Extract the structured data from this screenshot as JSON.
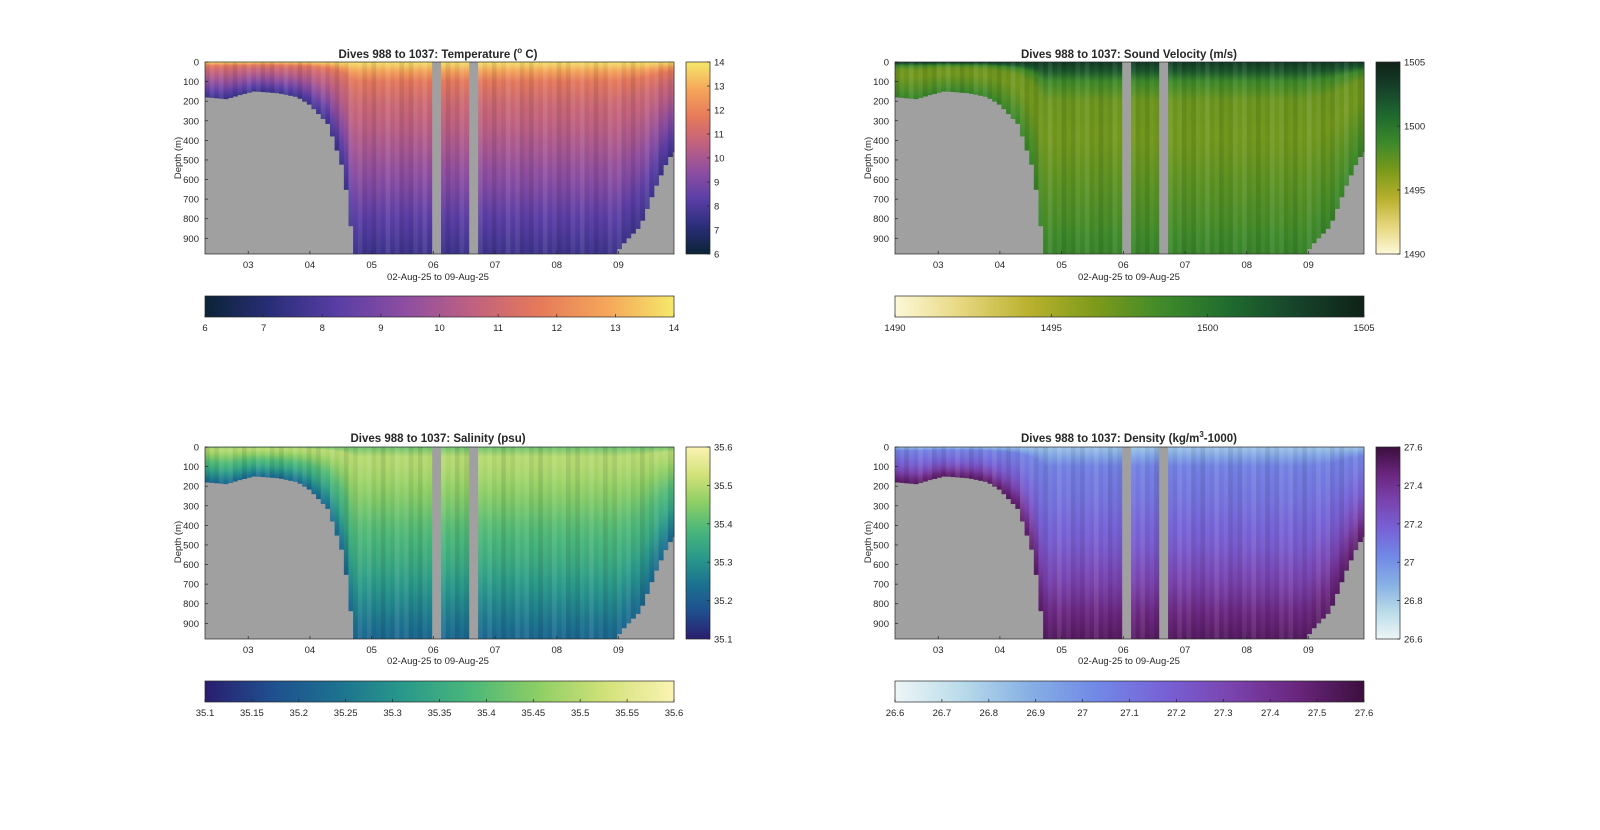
{
  "figure": {
    "background": "#ffffff",
    "mask_color": "#a0a0a0"
  },
  "chart_data": [
    {
      "type": "heatmap",
      "variable": "temperature",
      "title_parts": [
        "Dives 988 to 1037: Temperature (",
        "o",
        " C)"
      ],
      "xlabel": "02-Aug-25 to 09-Aug-25",
      "ylabel": "Depth (m)",
      "x_ticks": [
        "03",
        "04",
        "05",
        "06",
        "07",
        "08",
        "09"
      ],
      "y_ticks": [
        "0",
        "100",
        "200",
        "300",
        "400",
        "500",
        "600",
        "700",
        "800",
        "900"
      ],
      "ylim": [
        0,
        980
      ],
      "colorbar_ticks": [
        "6",
        "7",
        "8",
        "9",
        "10",
        "11",
        "12",
        "13",
        "14"
      ],
      "colorbar_h_ticks": [
        "6",
        "7",
        "8",
        "9",
        "10",
        "11",
        "12",
        "13",
        "14"
      ],
      "clim": [
        6,
        14
      ],
      "colormap": [
        "#0b2336",
        "#2a2e7a",
        "#5a3ea6",
        "#8e4ea1",
        "#c06180",
        "#e67a5a",
        "#f5a65a",
        "#f5e86a"
      ],
      "profile": [
        {
          "depth": 0,
          "value": 13.9
        },
        {
          "depth": 40,
          "value": 13.0
        },
        {
          "depth": 80,
          "value": 11.8
        },
        {
          "depth": 200,
          "value": 11.0
        },
        {
          "depth": 400,
          "value": 10.2
        },
        {
          "depth": 600,
          "value": 9.3
        },
        {
          "depth": 800,
          "value": 8.3
        },
        {
          "depth": 980,
          "value": 7.6
        }
      ]
    },
    {
      "type": "heatmap",
      "variable": "sound_velocity",
      "title_parts": [
        "Dives 988 to 1037: Sound Velocity (m/s)"
      ],
      "xlabel": "02-Aug-25 to 09-Aug-25",
      "ylabel": "Depth (m)",
      "x_ticks": [
        "03",
        "04",
        "05",
        "06",
        "07",
        "08",
        "09"
      ],
      "y_ticks": [
        "0",
        "100",
        "200",
        "300",
        "400",
        "500",
        "600",
        "700",
        "800",
        "900"
      ],
      "ylim": [
        0,
        980
      ],
      "colorbar_ticks": [
        "1490",
        "1495",
        "1500",
        "1505"
      ],
      "colorbar_h_ticks": [
        "1490",
        "1495",
        "1500",
        "1505"
      ],
      "clim": [
        1490,
        1505
      ],
      "colormap": [
        "#fdf8d8",
        "#e6d77e",
        "#b9b12e",
        "#7d9a1a",
        "#3f8a2a",
        "#1f6b2e",
        "#16432a",
        "#0f2216"
      ],
      "profile": [
        {
          "depth": 0,
          "value": 1503.5
        },
        {
          "depth": 40,
          "value": 1502.5
        },
        {
          "depth": 80,
          "value": 1499.0
        },
        {
          "depth": 200,
          "value": 1497.0
        },
        {
          "depth": 400,
          "value": 1496.8
        },
        {
          "depth": 600,
          "value": 1497.5
        },
        {
          "depth": 800,
          "value": 1498.2
        },
        {
          "depth": 980,
          "value": 1499.0
        }
      ]
    },
    {
      "type": "heatmap",
      "variable": "salinity",
      "title_parts": [
        "Dives 988 to 1037: Salinity (psu)"
      ],
      "xlabel": "02-Aug-25 to 09-Aug-25",
      "ylabel": "Depth (m)",
      "x_ticks": [
        "03",
        "04",
        "05",
        "06",
        "07",
        "08",
        "09"
      ],
      "y_ticks": [
        "0",
        "100",
        "200",
        "300",
        "400",
        "500",
        "600",
        "700",
        "800",
        "900"
      ],
      "ylim": [
        0,
        980
      ],
      "colorbar_ticks": [
        "35.1",
        "35.2",
        "35.3",
        "35.4",
        "35.5",
        "35.6"
      ],
      "colorbar_h_ticks": [
        "35.1",
        "35.15",
        "35.2",
        "35.25",
        "35.3",
        "35.35",
        "35.4",
        "35.45",
        "35.5",
        "35.55",
        "35.6"
      ],
      "clim": [
        35.1,
        35.6
      ],
      "colormap": [
        "#2a1d6e",
        "#1f4f8f",
        "#1c7290",
        "#2a9a8a",
        "#4cb879",
        "#8fcf65",
        "#d3e27a",
        "#fbf3b3"
      ],
      "profile": [
        {
          "depth": 0,
          "value": 35.42
        },
        {
          "depth": 40,
          "value": 35.5
        },
        {
          "depth": 120,
          "value": 35.49
        },
        {
          "depth": 250,
          "value": 35.45
        },
        {
          "depth": 400,
          "value": 35.4
        },
        {
          "depth": 600,
          "value": 35.35
        },
        {
          "depth": 800,
          "value": 35.28
        },
        {
          "depth": 980,
          "value": 35.22
        }
      ]
    },
    {
      "type": "heatmap",
      "variable": "density",
      "title_parts": [
        "Dives 988 to 1037: Density (kg/m",
        "3",
        "-1000)"
      ],
      "xlabel": "02-Aug-25 to 09-Aug-25",
      "ylabel": "Depth (m)",
      "x_ticks": [
        "03",
        "04",
        "05",
        "06",
        "07",
        "08",
        "09"
      ],
      "y_ticks": [
        "0",
        "100",
        "200",
        "300",
        "400",
        "500",
        "600",
        "700",
        "800",
        "900"
      ],
      "ylim": [
        0,
        980
      ],
      "colorbar_ticks": [
        "26.6",
        "26.8",
        "27",
        "27.2",
        "27.4",
        "27.6"
      ],
      "colorbar_h_ticks": [
        "26.6",
        "26.7",
        "26.8",
        "26.9",
        "27",
        "27.1",
        "27.2",
        "27.3",
        "27.4",
        "27.5",
        "27.6"
      ],
      "clim": [
        26.6,
        27.6
      ],
      "colormap": [
        "#eef6f7",
        "#b9dbe9",
        "#87b0e4",
        "#7189e6",
        "#7762d6",
        "#7a44b0",
        "#6a267e",
        "#3c0f3e"
      ],
      "profile": [
        {
          "depth": 0,
          "value": 26.82
        },
        {
          "depth": 40,
          "value": 26.9
        },
        {
          "depth": 80,
          "value": 27.05
        },
        {
          "depth": 300,
          "value": 27.12
        },
        {
          "depth": 500,
          "value": 27.2
        },
        {
          "depth": 700,
          "value": 27.33
        },
        {
          "depth": 850,
          "value": 27.45
        },
        {
          "depth": 980,
          "value": 27.52
        }
      ]
    }
  ],
  "section": {
    "x_range_days": [
      2.3,
      9.9
    ],
    "x_tick_days": [
      3,
      4,
      5,
      6,
      7,
      8,
      9
    ],
    "column_width_days": 0.075,
    "data_gaps_days": [
      [
        5.97,
        6.12
      ],
      [
        6.57,
        6.72
      ]
    ],
    "bottom_depth_m": [
      {
        "day": 2.3,
        "depth": 180
      },
      {
        "day": 2.65,
        "depth": 190
      },
      {
        "day": 2.85,
        "depth": 170
      },
      {
        "day": 3.1,
        "depth": 150
      },
      {
        "day": 3.5,
        "depth": 160
      },
      {
        "day": 3.8,
        "depth": 180
      },
      {
        "day": 4.0,
        "depth": 220
      },
      {
        "day": 4.3,
        "depth": 320
      },
      {
        "day": 4.55,
        "depth": 560
      },
      {
        "day": 4.72,
        "depth": 980
      },
      {
        "day": 8.95,
        "depth": 980
      },
      {
        "day": 9.1,
        "depth": 920
      },
      {
        "day": 9.35,
        "depth": 840
      },
      {
        "day": 9.6,
        "depth": 640
      },
      {
        "day": 9.8,
        "depth": 500
      },
      {
        "day": 9.9,
        "depth": 460
      }
    ]
  }
}
